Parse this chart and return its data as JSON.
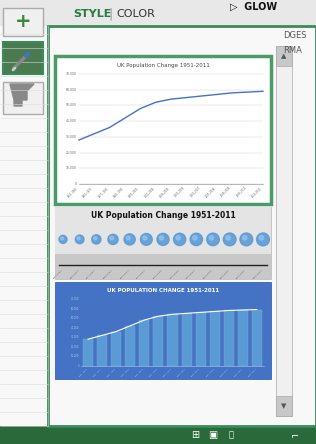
{
  "title": "UK Population Change 1951-2011",
  "title2": "UK Population Change 1951-2011",
  "title3": "UK POPULATION CHANGE 1951-2011",
  "years": [
    "1951-1961",
    "1961-1971",
    "1971-1981",
    "1981-1991",
    "1991-2001",
    "2001-2004",
    "2004-2005",
    "2005-2006",
    "2006-2007",
    "2007-2008",
    "2008-2009",
    "2009-2010",
    "2010-2011"
  ],
  "values": [
    28000,
    32000,
    36000,
    42000,
    48000,
    52000,
    54000,
    55000,
    56000,
    57000,
    58000,
    58500,
    59000
  ],
  "bg_main": "#e8e8e8",
  "panel_border_color": "#3a8a5a",
  "chart1_bg": "#ffffff",
  "chart1_line_color": "#4472c4",
  "chart1_border": "#4a9a6a",
  "chart2_bg_top": "#e0e0e0",
  "chart2_bg_bot": "#c0c0c0",
  "chart3_bg": "#4472c4",
  "chart3_bar_color": "#5b9bd5",
  "chart3_line_color": "#ffffff",
  "scrollbar_bg": "#f0f0f0",
  "scrollbar_btn": "#c8c8c8",
  "left_sidebar_bg": "#f5f5f5",
  "plus_btn_bg": "#f0f0f0",
  "icon1_bg": "#4a7a50",
  "icon2_bg": "#f0f0f0",
  "max_val": 70000,
  "ytick_labels": [
    "70,000",
    "60,000",
    "50,000",
    "40,000",
    "30,000",
    "20,000",
    "10,000",
    "0"
  ],
  "style_color": "#2a7a40",
  "header_sep_color": "#999999",
  "dges_rma_color": "#555555",
  "bottom_bar_color": "#2a6a3a"
}
